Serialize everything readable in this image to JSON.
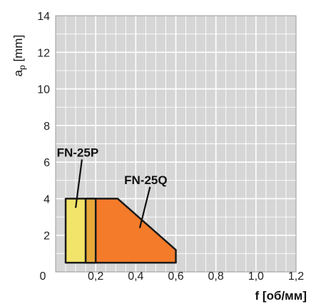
{
  "chart_data": {
    "type": "area",
    "title": "",
    "xlabel": "f [об/мм]",
    "ylabel_main": "a",
    "ylabel_sub": "p",
    "ylabel_unit": " [mm]",
    "xlim": [
      0,
      1.2
    ],
    "ylim": [
      0,
      14
    ],
    "xticks": [
      0.2,
      0.4,
      0.6,
      0.8,
      1.0,
      1.2
    ],
    "xtick_labels": [
      "0,2",
      "0,4",
      "0,6",
      "0,8",
      "1,0",
      "1,2"
    ],
    "yticks": [
      0,
      2,
      4,
      6,
      8,
      10,
      12,
      14
    ],
    "ytick_labels": [
      "0",
      "2",
      "4",
      "6",
      "8",
      "10",
      "12",
      "14"
    ],
    "origin_label": "0",
    "grid": true,
    "grid_minor_step_x": 0.05,
    "grid_minor_step_y": 1,
    "regions": [
      {
        "name": "FN-25P",
        "label": "FN-25P",
        "color": "#F2E46A",
        "stroke": "#1a1a1a",
        "polygon": [
          [
            0.05,
            0.5
          ],
          [
            0.05,
            4.0
          ],
          [
            0.2,
            4.0
          ],
          [
            0.2,
            0.5
          ]
        ]
      },
      {
        "name": "FN-25Q",
        "label": "FN-25Q",
        "color": "#F47B2A",
        "stroke": "#1a1a1a",
        "polygon": [
          [
            0.15,
            0.5
          ],
          [
            0.15,
            4.0
          ],
          [
            0.31,
            4.0
          ],
          [
            0.6,
            1.2
          ],
          [
            0.6,
            0.5
          ]
        ]
      }
    ],
    "overlap_color": "#E8A83A",
    "annotations": [
      {
        "text": "FN-25P",
        "label_at": [
          0.11,
          6.3
        ],
        "arrow_to": [
          0.1,
          3.5
        ]
      },
      {
        "text": "FN-25Q",
        "label_at": [
          0.45,
          4.8
        ],
        "arrow_to": [
          0.42,
          2.4
        ]
      }
    ]
  }
}
